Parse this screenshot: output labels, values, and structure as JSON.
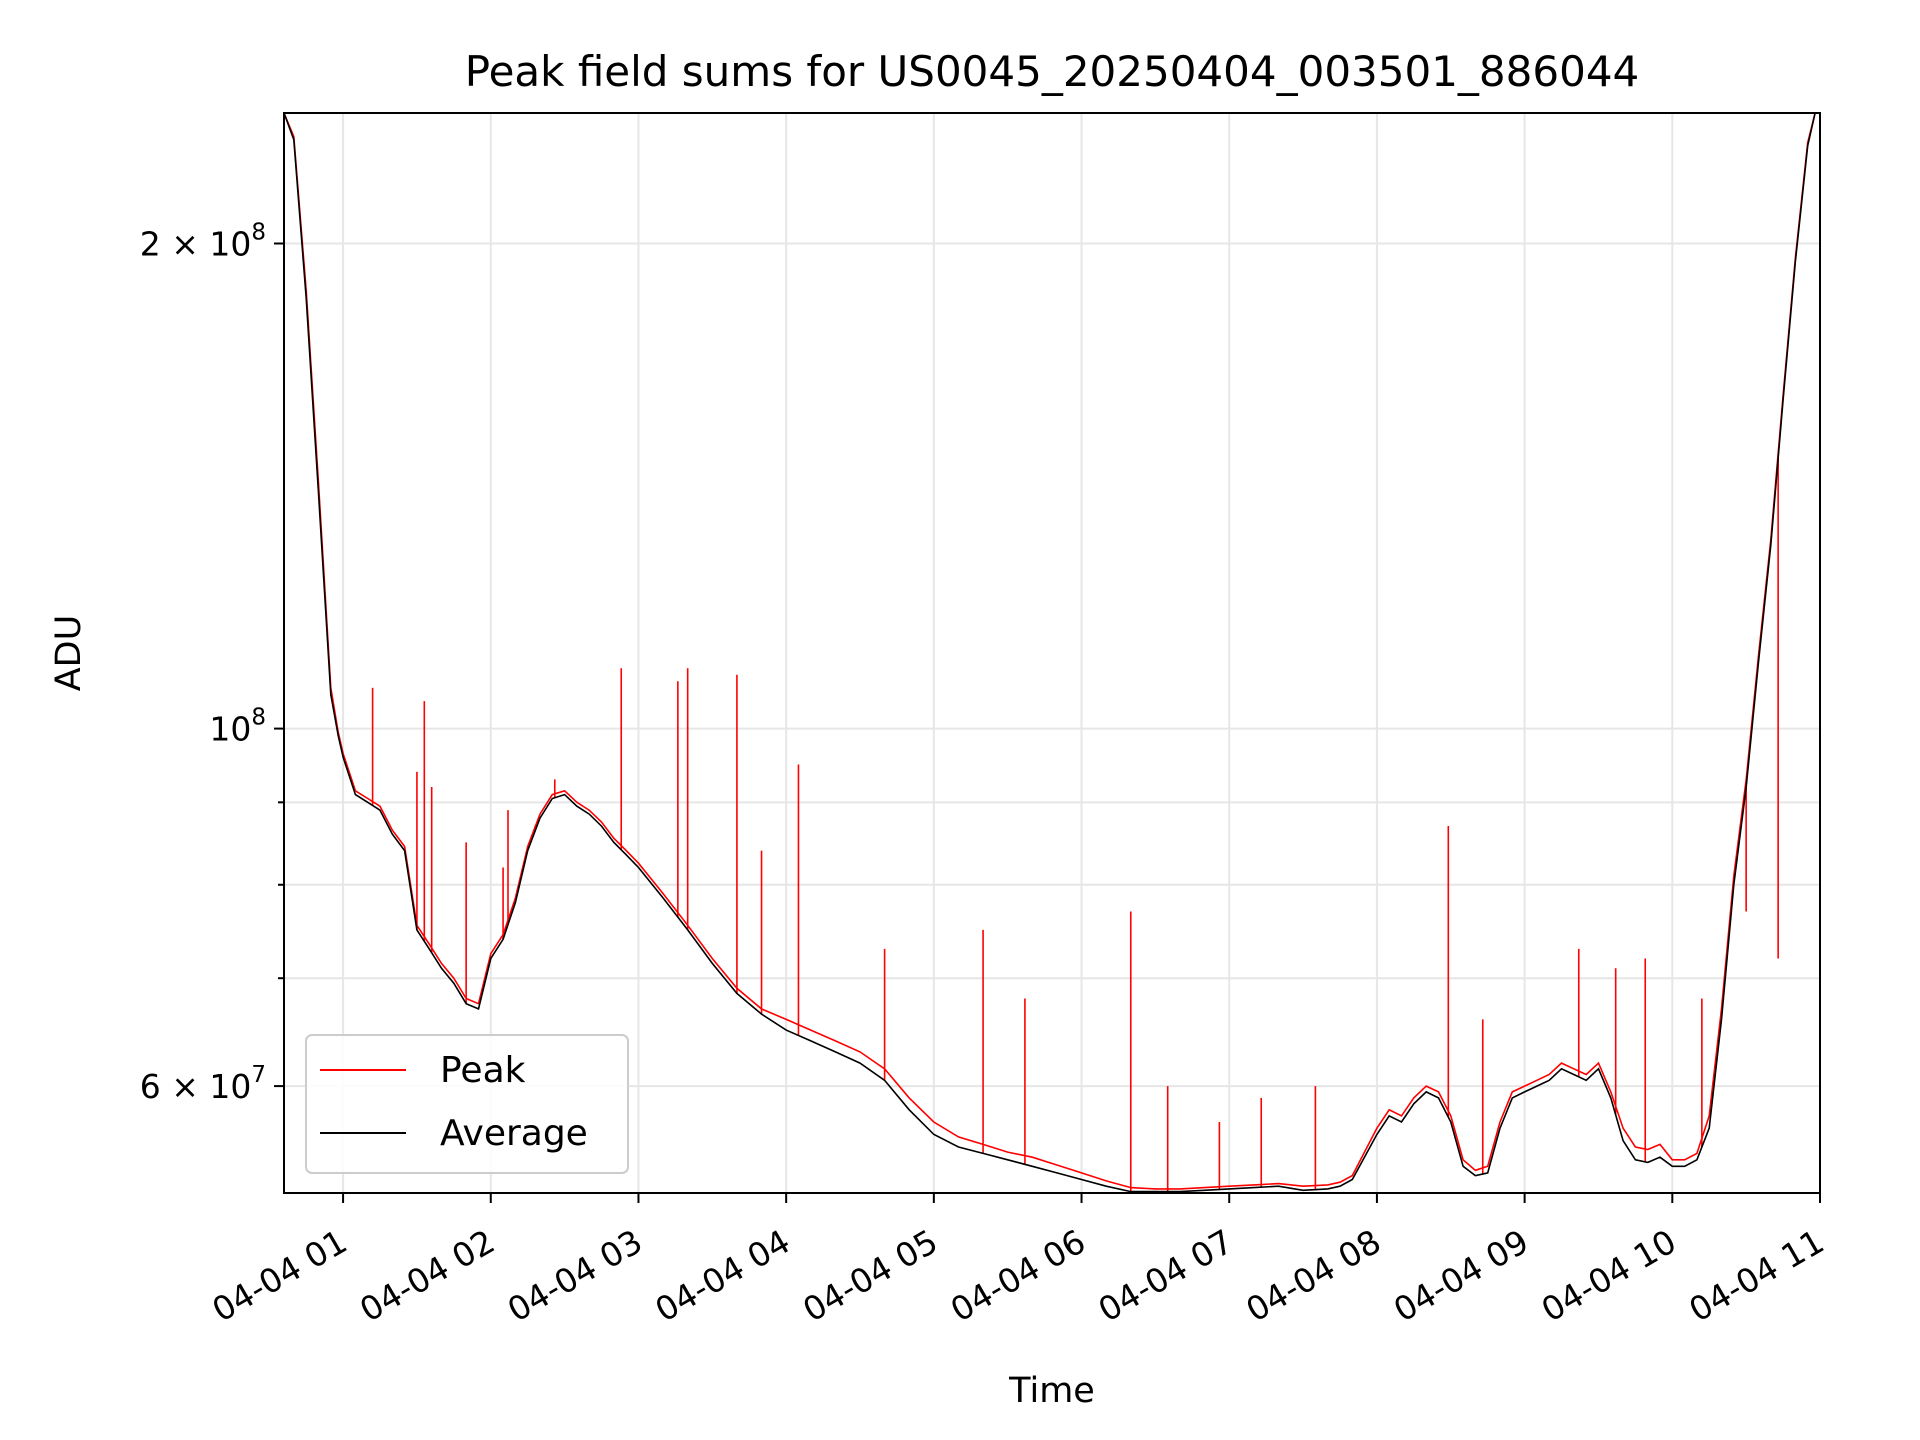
{
  "chart_data": {
    "type": "line",
    "title": "Peak field sums for US0045_20250404_003501_886044",
    "xlabel": "Time",
    "ylabel": "ADU",
    "yscale": "log",
    "x_format": "MM-DD HH",
    "xlim": [
      "2025-04-04 00:36",
      "2025-04-04 11:00"
    ],
    "ylim": [
      51500000,
      241000000
    ],
    "x_ticks": [
      "2025-04-04 01:00",
      "2025-04-04 02:00",
      "2025-04-04 03:00",
      "2025-04-04 04:00",
      "2025-04-04 05:00",
      "2025-04-04 06:00",
      "2025-04-04 07:00",
      "2025-04-04 08:00",
      "2025-04-04 09:00",
      "2025-04-04 10:00",
      "2025-04-04 11:00"
    ],
    "x_tick_labels": [
      "04-04 01",
      "04-04 02",
      "04-04 03",
      "04-04 04",
      "04-04 05",
      "04-04 06",
      "04-04 07",
      "04-04 08",
      "04-04 09",
      "04-04 10",
      "04-04 11"
    ],
    "y_major_ticks": [
      {
        "value": 60000000,
        "mantissa": "6",
        "exponent": "7"
      },
      {
        "value": 100000000,
        "mantissa": "",
        "exponent": "8"
      },
      {
        "value": 200000000,
        "mantissa": "2",
        "exponent": "8"
      }
    ],
    "y_minor_ticks": [
      50000000,
      70000000,
      80000000,
      90000000
    ],
    "grid": true,
    "legend": {
      "position": "lower-left",
      "entries": [
        "Peak",
        "Average"
      ]
    },
    "colors": {
      "Peak": "#ff0000",
      "Average": "#000000"
    },
    "series": [
      {
        "name": "Average",
        "x": [
          "2025-04-04 00:36",
          "2025-04-04 00:40",
          "2025-04-04 00:45",
          "2025-04-04 00:50",
          "2025-04-04 00:55",
          "2025-04-04 00:58",
          "2025-04-04 01:00",
          "2025-04-04 01:05",
          "2025-04-04 01:10",
          "2025-04-04 01:15",
          "2025-04-04 01:20",
          "2025-04-04 01:25",
          "2025-04-04 01:30",
          "2025-04-04 01:35",
          "2025-04-04 01:40",
          "2025-04-04 01:45",
          "2025-04-04 01:50",
          "2025-04-04 01:55",
          "2025-04-04 02:00",
          "2025-04-04 02:05",
          "2025-04-04 02:10",
          "2025-04-04 02:15",
          "2025-04-04 02:20",
          "2025-04-04 02:25",
          "2025-04-04 02:30",
          "2025-04-04 02:35",
          "2025-04-04 02:40",
          "2025-04-04 02:45",
          "2025-04-04 02:50",
          "2025-04-04 02:55",
          "2025-04-04 03:00",
          "2025-04-04 03:10",
          "2025-04-04 03:20",
          "2025-04-04 03:30",
          "2025-04-04 03:40",
          "2025-04-04 03:50",
          "2025-04-04 04:00",
          "2025-04-04 04:10",
          "2025-04-04 04:20",
          "2025-04-04 04:30",
          "2025-04-04 04:40",
          "2025-04-04 04:50",
          "2025-04-04 05:00",
          "2025-04-04 05:10",
          "2025-04-04 05:20",
          "2025-04-04 05:30",
          "2025-04-04 05:40",
          "2025-04-04 05:50",
          "2025-04-04 06:00",
          "2025-04-04 06:10",
          "2025-04-04 06:20",
          "2025-04-04 06:30",
          "2025-04-04 06:40",
          "2025-04-04 06:50",
          "2025-04-04 07:00",
          "2025-04-04 07:10",
          "2025-04-04 07:20",
          "2025-04-04 07:30",
          "2025-04-04 07:40",
          "2025-04-04 07:45",
          "2025-04-04 07:50",
          "2025-04-04 08:00",
          "2025-04-04 08:05",
          "2025-04-04 08:10",
          "2025-04-04 08:15",
          "2025-04-04 08:20",
          "2025-04-04 08:25",
          "2025-04-04 08:30",
          "2025-04-04 08:35",
          "2025-04-04 08:40",
          "2025-04-04 08:45",
          "2025-04-04 08:50",
          "2025-04-04 08:55",
          "2025-04-04 09:00",
          "2025-04-04 09:05",
          "2025-04-04 09:10",
          "2025-04-04 09:15",
          "2025-04-04 09:20",
          "2025-04-04 09:25",
          "2025-04-04 09:30",
          "2025-04-04 09:35",
          "2025-04-04 09:40",
          "2025-04-04 09:45",
          "2025-04-04 09:50",
          "2025-04-04 09:55",
          "2025-04-04 10:00",
          "2025-04-04 10:05",
          "2025-04-04 10:10",
          "2025-04-04 10:15",
          "2025-04-04 10:20",
          "2025-04-04 10:25",
          "2025-04-04 10:30",
          "2025-04-04 10:35",
          "2025-04-04 10:40",
          "2025-04-04 10:45",
          "2025-04-04 10:50",
          "2025-04-04 10:55",
          "2025-04-04 10:58"
        ],
        "values": [
          241000000,
          232000000,
          185000000,
          140000000,
          105000000,
          99000000,
          96000000,
          91000000,
          90000000,
          89000000,
          86000000,
          84000000,
          75000000,
          73000000,
          71000000,
          69500000,
          67500000,
          67000000,
          72000000,
          74000000,
          78000000,
          84000000,
          88000000,
          90500000,
          91000000,
          89500000,
          88500000,
          87000000,
          85000000,
          83500000,
          82000000,
          78500000,
          75000000,
          71500000,
          68500000,
          66500000,
          65000000,
          64000000,
          63000000,
          62000000,
          60500000,
          58000000,
          56000000,
          55000000,
          54500000,
          54000000,
          53500000,
          53000000,
          52500000,
          52000000,
          51600000,
          51600000,
          51600000,
          51700000,
          51800000,
          51900000,
          52000000,
          51700000,
          51800000,
          52000000,
          52500000,
          56000000,
          57500000,
          57000000,
          58500000,
          59500000,
          59000000,
          57000000,
          53500000,
          52800000,
          53000000,
          56500000,
          59000000,
          59500000,
          60000000,
          60500000,
          61500000,
          61000000,
          60500000,
          61500000,
          59000000,
          55500000,
          54000000,
          53800000,
          54200000,
          53500000,
          53500000,
          54000000,
          56500000,
          66000000,
          80000000,
          92000000,
          110000000,
          130000000,
          160000000,
          195000000,
          230000000,
          241000000
        ]
      },
      {
        "name": "Peak",
        "x": [
          "2025-04-04 00:36",
          "2025-04-04 00:40",
          "2025-04-04 00:45",
          "2025-04-04 00:50",
          "2025-04-04 00:55",
          "2025-04-04 00:58",
          "2025-04-04 01:00",
          "2025-04-04 01:05",
          "2025-04-04 01:10",
          "2025-04-04 01:15",
          "2025-04-04 01:20",
          "2025-04-04 01:25",
          "2025-04-04 01:30",
          "2025-04-04 01:35",
          "2025-04-04 01:40",
          "2025-04-04 01:45",
          "2025-04-04 01:50",
          "2025-04-04 01:55",
          "2025-04-04 02:00",
          "2025-04-04 02:05",
          "2025-04-04 02:10",
          "2025-04-04 02:15",
          "2025-04-04 02:20",
          "2025-04-04 02:25",
          "2025-04-04 02:30",
          "2025-04-04 02:35",
          "2025-04-04 02:40",
          "2025-04-04 02:45",
          "2025-04-04 02:50",
          "2025-04-04 02:55",
          "2025-04-04 03:00",
          "2025-04-04 03:10",
          "2025-04-04 03:20",
          "2025-04-04 03:30",
          "2025-04-04 03:40",
          "2025-04-04 03:50",
          "2025-04-04 04:00",
          "2025-04-04 04:10",
          "2025-04-04 04:20",
          "2025-04-04 04:30",
          "2025-04-04 04:40",
          "2025-04-04 04:50",
          "2025-04-04 05:00",
          "2025-04-04 05:10",
          "2025-04-04 05:20",
          "2025-04-04 05:30",
          "2025-04-04 05:40",
          "2025-04-04 05:50",
          "2025-04-04 06:00",
          "2025-04-04 06:10",
          "2025-04-04 06:20",
          "2025-04-04 06:30",
          "2025-04-04 06:40",
          "2025-04-04 06:50",
          "2025-04-04 07:00",
          "2025-04-04 07:10",
          "2025-04-04 07:20",
          "2025-04-04 07:30",
          "2025-04-04 07:40",
          "2025-04-04 07:45",
          "2025-04-04 07:50",
          "2025-04-04 08:00",
          "2025-04-04 08:05",
          "2025-04-04 08:10",
          "2025-04-04 08:15",
          "2025-04-04 08:20",
          "2025-04-04 08:25",
          "2025-04-04 08:30",
          "2025-04-04 08:35",
          "2025-04-04 08:40",
          "2025-04-04 08:45",
          "2025-04-04 08:50",
          "2025-04-04 08:55",
          "2025-04-04 09:00",
          "2025-04-04 09:05",
          "2025-04-04 09:10",
          "2025-04-04 09:15",
          "2025-04-04 09:20",
          "2025-04-04 09:25",
          "2025-04-04 09:30",
          "2025-04-04 09:35",
          "2025-04-04 09:40",
          "2025-04-04 09:45",
          "2025-04-04 09:50",
          "2025-04-04 09:55",
          "2025-04-04 10:00",
          "2025-04-04 10:05",
          "2025-04-04 10:10",
          "2025-04-04 10:15",
          "2025-04-04 10:20",
          "2025-04-04 10:25",
          "2025-04-04 10:30",
          "2025-04-04 10:35",
          "2025-04-04 10:40",
          "2025-04-04 10:45",
          "2025-04-04 10:50",
          "2025-04-04 10:55",
          "2025-04-04 10:58"
        ],
        "values": [
          241000000,
          233000000,
          187000000,
          142000000,
          106000000,
          99500000,
          96500000,
          91500000,
          90500000,
          89500000,
          86500000,
          84500000,
          75500000,
          73500000,
          71500000,
          70000000,
          68000000,
          67500000,
          72500000,
          74500000,
          78500000,
          84500000,
          88500000,
          91000000,
          91500000,
          90000000,
          89000000,
          87500000,
          85500000,
          84000000,
          82500000,
          79000000,
          75500000,
          72000000,
          69000000,
          67000000,
          66000000,
          65000000,
          64000000,
          63000000,
          61500000,
          59000000,
          57000000,
          55800000,
          55200000,
          54600000,
          54200000,
          53600000,
          53000000,
          52400000,
          51900000,
          51800000,
          51800000,
          51900000,
          52000000,
          52100000,
          52200000,
          52000000,
          52100000,
          52300000,
          52800000,
          56500000,
          58000000,
          57500000,
          59000000,
          60000000,
          59500000,
          57500000,
          54000000,
          53200000,
          53500000,
          57000000,
          59500000,
          60000000,
          60500000,
          61000000,
          62000000,
          61500000,
          61000000,
          62000000,
          59500000,
          56500000,
          55000000,
          54800000,
          55200000,
          54000000,
          54000000,
          54500000,
          57500000,
          67000000,
          81000000,
          93000000,
          111000000,
          131000000,
          161000000,
          196000000,
          231000000,
          241000000
        ]
      }
    ],
    "peak_spikes": [
      {
        "x": "2025-04-04 01:12",
        "y": 106000000
      },
      {
        "x": "2025-04-04 01:30",
        "y": 94000000
      },
      {
        "x": "2025-04-04 01:33",
        "y": 104000000
      },
      {
        "x": "2025-04-04 01:36",
        "y": 92000000
      },
      {
        "x": "2025-04-04 01:50",
        "y": 85000000
      },
      {
        "x": "2025-04-04 02:05",
        "y": 82000000
      },
      {
        "x": "2025-04-04 02:07",
        "y": 89000000
      },
      {
        "x": "2025-04-04 02:18",
        "y": 87000000
      },
      {
        "x": "2025-04-04 02:26",
        "y": 93000000
      },
      {
        "x": "2025-04-04 02:53",
        "y": 109000000
      },
      {
        "x": "2025-04-04 03:16",
        "y": 107000000
      },
      {
        "x": "2025-04-04 03:20",
        "y": 109000000
      },
      {
        "x": "2025-04-04 03:40",
        "y": 108000000
      },
      {
        "x": "2025-04-04 03:50",
        "y": 84000000
      },
      {
        "x": "2025-04-04 04:05",
        "y": 95000000
      },
      {
        "x": "2025-04-04 04:40",
        "y": 73000000
      },
      {
        "x": "2025-04-04 05:20",
        "y": 75000000
      },
      {
        "x": "2025-04-04 05:37",
        "y": 68000000
      },
      {
        "x": "2025-04-04 06:20",
        "y": 77000000
      },
      {
        "x": "2025-04-04 06:35",
        "y": 60000000
      },
      {
        "x": "2025-04-04 06:56",
        "y": 57000000
      },
      {
        "x": "2025-04-04 07:13",
        "y": 59000000
      },
      {
        "x": "2025-04-04 07:35",
        "y": 60000000
      },
      {
        "x": "2025-04-04 08:29",
        "y": 87000000
      },
      {
        "x": "2025-04-04 08:43",
        "y": 66000000
      },
      {
        "x": "2025-04-04 09:22",
        "y": 73000000
      },
      {
        "x": "2025-04-04 09:37",
        "y": 71000000
      },
      {
        "x": "2025-04-04 09:49",
        "y": 72000000
      },
      {
        "x": "2025-04-04 10:12",
        "y": 68000000
      },
      {
        "x": "2025-04-04 10:30",
        "y": 77000000
      },
      {
        "x": "2025-04-04 10:43",
        "y": 72000000
      }
    ]
  }
}
